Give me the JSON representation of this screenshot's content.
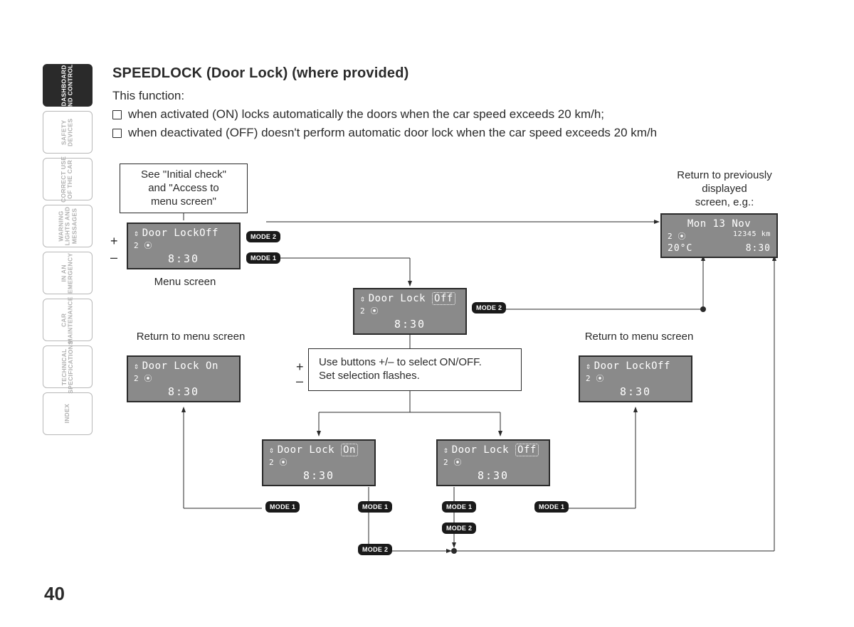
{
  "page_number": "40",
  "sidebar": {
    "tabs": [
      {
        "label": "DASHBOARD\nAND CONTROLS",
        "active": true
      },
      {
        "label": "SAFETY\nDEVICES",
        "active": false
      },
      {
        "label": "CORRECT USE\nOF THE CAR",
        "active": false
      },
      {
        "label": "WARNING\nLIGHTS AND\nMESSAGES",
        "active": false
      },
      {
        "label": "IN AN\nEMERGENCY",
        "active": false
      },
      {
        "label": "CAR\nMAINTENANCE",
        "active": false
      },
      {
        "label": "TECHNICAL\nSPECIFICATIONS",
        "active": false
      },
      {
        "label": "INDEX",
        "active": false
      }
    ]
  },
  "heading": "SPEEDLOCK (Door Lock) (where provided)",
  "intro": "This function:",
  "bullets": [
    "when activated (ON) locks automatically the doors when the car speed exceeds 20 km/h;",
    "when deactivated (OFF) doesn't perform automatic door lock when the car speed exceeds 20 km/h"
  ],
  "captions": {
    "initial_box": "See \"Initial check\"\nand \"Access to\nmenu screen\"",
    "menu_screen": "Menu screen",
    "return_menu_left": "Return to menu screen",
    "return_menu_right": "Return to menu screen",
    "return_prev": "Return to previously\ndisplayed\nscreen, e.g.:",
    "select_box": "Use buttons +/– to select ON/OFF.\nSet selection flashes."
  },
  "pm": {
    "plus": "+",
    "minus": "–"
  },
  "badges": {
    "mode1": "MODE 1",
    "mode2": "MODE 2"
  },
  "lcd_common": {
    "arrows": "⇕",
    "line2": "2 ⦿",
    "time": "8:30"
  },
  "screens": {
    "menu": {
      "line1_label": "Door Lock",
      "value": "Off"
    },
    "center": {
      "line1_label": "Door Lock",
      "value": "Off",
      "highlight": true
    },
    "return_l": {
      "line1_label": "Door Lock",
      "value": "On"
    },
    "return_r": {
      "line1_label": "Door Lock",
      "value": "Off"
    },
    "select_on": {
      "line1_label": "Door Lock",
      "value": "On",
      "highlight": true
    },
    "select_off": {
      "line1_label": "Door Lock",
      "value": "Off",
      "highlight": true
    },
    "clock": {
      "r1": "Mon 13 Nov",
      "r2a": "2 ⦿",
      "r2b": "12345 km",
      "r3a": "20°C",
      "r3b": "8:30"
    }
  },
  "style": {
    "lcd_bg": "#8a8a8a",
    "lcd_text": "#ffffff",
    "line_color": "#2a2a2a",
    "tab_inactive": "#b0b0b0",
    "tab_active_bg": "#2a2a2a"
  }
}
